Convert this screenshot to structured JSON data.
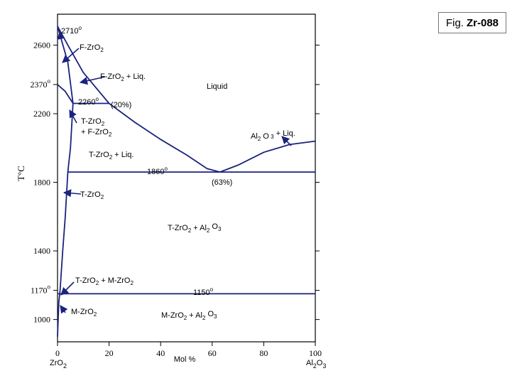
{
  "badge": {
    "prefix": "Fig.",
    "code": "Zr-088"
  },
  "chart_data": {
    "type": "phase-diagram",
    "xlabel": "Mol %",
    "ylabel": "T°C",
    "x_left_component": "ZrO2",
    "x_right_component": "Al2O3",
    "xlim": [
      0,
      100
    ],
    "ylim": [
      870,
      2780
    ],
    "x_ticks": [
      0,
      20,
      40,
      60,
      80,
      100
    ],
    "y_ticks": [
      1000,
      1170,
      1400,
      1800,
      2200,
      2370,
      2600
    ],
    "y_tick_labels": [
      "1000",
      "1170°",
      "1400",
      "1800",
      "2200",
      "2370°",
      "2600"
    ],
    "grid": false,
    "colors": {
      "lines": "#1a237e",
      "axes": "#000000",
      "arrows": "#1a237e"
    },
    "eutectic_temperature": 1860,
    "eutectic_composition": 63,
    "peritectic_temperature": 2260,
    "peritectic_composition": 20,
    "eutectoid_temperature": 1150,
    "series": [
      {
        "name": "Liquidus (ZrO2 side)",
        "points": [
          [
            0,
            2710
          ],
          [
            4,
            2600
          ],
          [
            10,
            2440
          ],
          [
            20,
            2260
          ],
          [
            30,
            2150
          ],
          [
            40,
            2050
          ],
          [
            50,
            1960
          ],
          [
            58,
            1880
          ],
          [
            63,
            1860
          ]
        ]
      },
      {
        "name": "Liquidus (Al2O3 side)",
        "points": [
          [
            63,
            1860
          ],
          [
            70,
            1900
          ],
          [
            80,
            1975
          ],
          [
            90,
            2020
          ],
          [
            100,
            2040
          ]
        ]
      },
      {
        "name": "F-ZrO2 solidus",
        "points": [
          [
            0,
            2710
          ],
          [
            4,
            2500
          ],
          [
            6,
            2260
          ]
        ]
      },
      {
        "name": "F/T boundary",
        "points": [
          [
            0,
            2370
          ],
          [
            3,
            2330
          ],
          [
            6,
            2260
          ]
        ]
      },
      {
        "name": "T-ZrO2 solvus",
        "points": [
          [
            6,
            2260
          ],
          [
            5,
            2000
          ],
          [
            4,
            1860
          ],
          [
            3,
            1600
          ],
          [
            2,
            1400
          ],
          [
            1,
            1170
          ],
          [
            0.5,
            1100
          ],
          [
            0,
            900
          ]
        ]
      },
      {
        "name": "Peritectic line",
        "points": [
          [
            6,
            2260
          ],
          [
            20,
            2260
          ]
        ]
      },
      {
        "name": "Eutectic line",
        "points": [
          [
            4,
            1860
          ],
          [
            100,
            1860
          ]
        ]
      },
      {
        "name": "Eutectoid line",
        "points": [
          [
            0,
            1150
          ],
          [
            100,
            1150
          ]
        ]
      }
    ],
    "annotations": [
      {
        "id": "t2710",
        "text": "2710",
        "degree": "o"
      },
      {
        "id": "t2260",
        "text": "2260",
        "degree": "o"
      },
      {
        "id": "t1860",
        "text": "1860",
        "degree": "o"
      },
      {
        "id": "t1150",
        "text": "1150",
        "degree": "o"
      },
      {
        "id": "p20",
        "text": "(20%)"
      },
      {
        "id": "p63",
        "text": "(63%)"
      },
      {
        "id": "liquid",
        "text": "Liquid"
      }
    ],
    "phase_labels": {
      "f_zro2": {
        "a": "F-ZrO",
        "sub": "2",
        "b": ""
      },
      "f_liq": {
        "a": "F-ZrO",
        "sub": "2",
        "b": "+ Liq."
      },
      "t_fzro2_1": {
        "a": "T-ZrO",
        "sub": "2",
        "b": ""
      },
      "t_fzro2_2": {
        "a": "+ F-ZrO",
        "sub": "2",
        "b": ""
      },
      "t_liq": {
        "a": "T-ZrO",
        "sub": "2",
        "b": "+ Liq."
      },
      "al2o3_liq": {
        "a": "Al",
        "sub": "2",
        "c": "O",
        "sub2": "3",
        "b": "+ Liq."
      },
      "t_zro2": {
        "a": "T-ZrO",
        "sub": "2",
        "b": ""
      },
      "t_al2o3": {
        "a": "T-ZrO",
        "sub": "2",
        "b": "+ Al",
        "sub2": "2",
        "c": "O",
        "sub3": "3"
      },
      "t_mzro2": {
        "a": "T-ZrO",
        "sub": "2",
        "b": "+ M-ZrO",
        "sub2": "2"
      },
      "m_zro2": {
        "a": "M-ZrO",
        "sub": "2",
        "b": ""
      },
      "m_al2o3": {
        "a": "M-ZrO",
        "sub": "2",
        "b": "+ Al",
        "sub2": "2",
        "c": "O",
        "sub3": "3"
      }
    }
  }
}
